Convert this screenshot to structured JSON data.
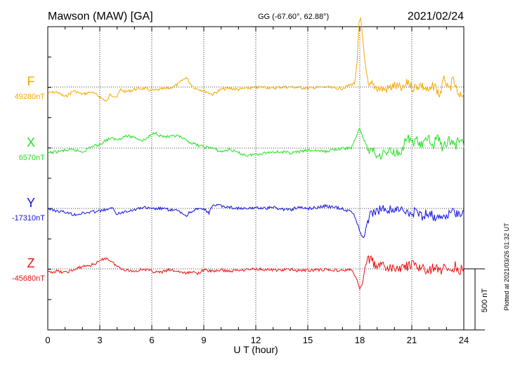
{
  "header": {
    "station": "Mawson (MAW)  [GA]",
    "coords": "GG (-67.60°,  62.88°)",
    "date": "2021/02/24"
  },
  "footer": {
    "plotted": "Plotted at 2021/03/26 01:32 UT",
    "scale_label": "500 nT"
  },
  "chart_data": {
    "type": "line",
    "xlabel": "U T (hour)",
    "xlim": [
      0,
      24
    ],
    "xticks": [
      "0",
      "3",
      "6",
      "9",
      "12",
      "15",
      "18",
      "21",
      "24"
    ],
    "scale_nT": 500,
    "series": [
      {
        "name": "F",
        "baseline_label": "49280nT",
        "baseline_nT": 49280,
        "color": "#f5a800",
        "points": [
          [
            0,
            -50
          ],
          [
            0.5,
            -40
          ],
          [
            1,
            -80
          ],
          [
            1.5,
            -30
          ],
          [
            2,
            -60
          ],
          [
            2.5,
            -40
          ],
          [
            3,
            -80
          ],
          [
            3.4,
            -120
          ],
          [
            3.6,
            -60
          ],
          [
            4,
            -80
          ],
          [
            4.2,
            -20
          ],
          [
            4.5,
            -40
          ],
          [
            5,
            -20
          ],
          [
            5.5,
            -10
          ],
          [
            6,
            -30
          ],
          [
            6.5,
            -20
          ],
          [
            7,
            -10
          ],
          [
            7.5,
            20
          ],
          [
            7.8,
            60
          ],
          [
            8,
            80
          ],
          [
            8.2,
            30
          ],
          [
            8.5,
            -10
          ],
          [
            9,
            -30
          ],
          [
            9.5,
            -60
          ],
          [
            10,
            -20
          ],
          [
            10.5,
            -10
          ],
          [
            11,
            -20
          ],
          [
            11.5,
            -10
          ],
          [
            12,
            -5
          ],
          [
            12.5,
            0
          ],
          [
            13,
            -10
          ],
          [
            13.5,
            0
          ],
          [
            14,
            0
          ],
          [
            14.5,
            -5
          ],
          [
            15,
            -10
          ],
          [
            15.5,
            -5
          ],
          [
            16,
            0
          ],
          [
            16.5,
            -10
          ],
          [
            17,
            -10
          ],
          [
            17.5,
            20
          ],
          [
            17.7,
            30
          ],
          [
            17.85,
            200
          ],
          [
            17.95,
            520
          ],
          [
            18.05,
            560
          ],
          [
            18.15,
            430
          ],
          [
            18.3,
            200
          ],
          [
            18.5,
            -10
          ],
          [
            18.7,
            20
          ],
          [
            19,
            -5
          ],
          [
            19.5,
            -20
          ],
          [
            20,
            10
          ],
          [
            20.5,
            -20
          ],
          [
            20.8,
            50
          ],
          [
            21,
            -10
          ],
          [
            21.5,
            20
          ],
          [
            22,
            -40
          ],
          [
            22.3,
            20
          ],
          [
            22.6,
            -70
          ],
          [
            22.9,
            80
          ],
          [
            23.1,
            -40
          ],
          [
            23.4,
            60
          ],
          [
            23.7,
            -90
          ],
          [
            24,
            -50
          ]
        ]
      },
      {
        "name": "X",
        "baseline_label": "6570nT",
        "baseline_nT": 6570,
        "color": "#22e022",
        "points": [
          [
            0,
            -40
          ],
          [
            0.5,
            -30
          ],
          [
            1,
            -20
          ],
          [
            1.5,
            -15
          ],
          [
            2,
            -30
          ],
          [
            2.5,
            10
          ],
          [
            3,
            30
          ],
          [
            3.3,
            60
          ],
          [
            3.6,
            80
          ],
          [
            4,
            70
          ],
          [
            4.5,
            100
          ],
          [
            5,
            90
          ],
          [
            5.5,
            60
          ],
          [
            6,
            110
          ],
          [
            6.2,
            130
          ],
          [
            6.5,
            100
          ],
          [
            7,
            90
          ],
          [
            7.5,
            100
          ],
          [
            8,
            60
          ],
          [
            8.5,
            30
          ],
          [
            9,
            10
          ],
          [
            9.5,
            0
          ],
          [
            10,
            -30
          ],
          [
            10.5,
            -10
          ],
          [
            11,
            -40
          ],
          [
            11.5,
            -60
          ],
          [
            12,
            -50
          ],
          [
            12.5,
            -40
          ],
          [
            13,
            -30
          ],
          [
            13.5,
            -30
          ],
          [
            14,
            -40
          ],
          [
            14.5,
            -30
          ],
          [
            15,
            -20
          ],
          [
            15.5,
            -20
          ],
          [
            16,
            -30
          ],
          [
            16.5,
            -10
          ],
          [
            17,
            -5
          ],
          [
            17.5,
            0
          ],
          [
            17.8,
            100
          ],
          [
            18,
            160
          ],
          [
            18.2,
            80
          ],
          [
            18.4,
            20
          ],
          [
            18.6,
            -30
          ],
          [
            18.8,
            -20
          ],
          [
            19,
            -60
          ],
          [
            19.4,
            -40
          ],
          [
            19.8,
            -20
          ],
          [
            20.2,
            -40
          ],
          [
            20.5,
            0
          ],
          [
            20.7,
            90
          ],
          [
            21,
            40
          ],
          [
            21.3,
            70
          ],
          [
            21.6,
            10
          ],
          [
            21.9,
            90
          ],
          [
            22.2,
            20
          ],
          [
            22.5,
            100
          ],
          [
            22.8,
            -10
          ],
          [
            23.1,
            80
          ],
          [
            23.5,
            10
          ],
          [
            23.8,
            100
          ],
          [
            24,
            0
          ]
        ]
      },
      {
        "name": "Y",
        "baseline_label": "-17310nT",
        "baseline_nT": -17310,
        "color": "#1010dd",
        "points": [
          [
            0,
            0
          ],
          [
            0.5,
            -20
          ],
          [
            1,
            -30
          ],
          [
            1.5,
            -50
          ],
          [
            2,
            -40
          ],
          [
            2.5,
            -30
          ],
          [
            3,
            -20
          ],
          [
            3.4,
            -10
          ],
          [
            3.8,
            0
          ],
          [
            4,
            -50
          ],
          [
            4.5,
            -20
          ],
          [
            5,
            -10
          ],
          [
            5.5,
            10
          ],
          [
            6,
            -5
          ],
          [
            6.5,
            0
          ],
          [
            7,
            -10
          ],
          [
            7.5,
            -20
          ],
          [
            8,
            -60
          ],
          [
            8.2,
            -30
          ],
          [
            8.5,
            -10
          ],
          [
            9,
            -5
          ],
          [
            9.3,
            -40
          ],
          [
            9.5,
            30
          ],
          [
            10,
            20
          ],
          [
            10.5,
            10
          ],
          [
            11,
            0
          ],
          [
            11.5,
            -5
          ],
          [
            12,
            10
          ],
          [
            12.5,
            0
          ],
          [
            13,
            10
          ],
          [
            13.5,
            -5
          ],
          [
            14,
            -10
          ],
          [
            14.5,
            10
          ],
          [
            15,
            0
          ],
          [
            15.5,
            10
          ],
          [
            16,
            20
          ],
          [
            16.5,
            10
          ],
          [
            17,
            0
          ],
          [
            17.3,
            -20
          ],
          [
            17.6,
            -30
          ],
          [
            17.8,
            -100
          ],
          [
            18,
            -180
          ],
          [
            18.2,
            -250
          ],
          [
            18.3,
            -210
          ],
          [
            18.45,
            -100
          ],
          [
            18.6,
            -50
          ],
          [
            18.8,
            -40
          ],
          [
            19,
            -20
          ],
          [
            19.5,
            0
          ],
          [
            20,
            -10
          ],
          [
            20.5,
            -20
          ],
          [
            21,
            -40
          ],
          [
            21.3,
            -20
          ],
          [
            21.6,
            -60
          ],
          [
            22,
            -30
          ],
          [
            22.3,
            -70
          ],
          [
            22.6,
            -40
          ],
          [
            22.9,
            -80
          ],
          [
            23.2,
            -30
          ],
          [
            23.6,
            -50
          ],
          [
            24,
            -20
          ]
        ]
      },
      {
        "name": "Z",
        "baseline_label": "-45680nT",
        "baseline_nT": -45680,
        "color": "#ee1111",
        "points": [
          [
            0,
            -30
          ],
          [
            0.5,
            -20
          ],
          [
            1,
            -30
          ],
          [
            1.5,
            -10
          ],
          [
            2,
            20
          ],
          [
            2.5,
            30
          ],
          [
            3,
            60
          ],
          [
            3.3,
            90
          ],
          [
            3.6,
            70
          ],
          [
            4,
            20
          ],
          [
            4.5,
            -10
          ],
          [
            5,
            -20
          ],
          [
            5.5,
            0
          ],
          [
            6,
            -20
          ],
          [
            6.5,
            -30
          ],
          [
            7,
            -10
          ],
          [
            7.5,
            -20
          ],
          [
            8,
            -40
          ],
          [
            8.3,
            -20
          ],
          [
            8.6,
            -40
          ],
          [
            9,
            -10
          ],
          [
            9.5,
            -20
          ],
          [
            10,
            -10
          ],
          [
            10.5,
            -20
          ],
          [
            11,
            -10
          ],
          [
            11.5,
            -5
          ],
          [
            12,
            0
          ],
          [
            12.5,
            -5
          ],
          [
            13,
            -10
          ],
          [
            13.5,
            -10
          ],
          [
            14,
            -5
          ],
          [
            14.5,
            -15
          ],
          [
            15,
            -10
          ],
          [
            15.5,
            -10
          ],
          [
            16,
            -5
          ],
          [
            16.5,
            -10
          ],
          [
            17,
            -15
          ],
          [
            17.5,
            -5
          ],
          [
            17.8,
            -80
          ],
          [
            18,
            -170
          ],
          [
            18.15,
            -120
          ],
          [
            18.3,
            10
          ],
          [
            18.5,
            90
          ],
          [
            18.7,
            60
          ],
          [
            19,
            30
          ],
          [
            19.5,
            10
          ],
          [
            20,
            0
          ],
          [
            20.5,
            10
          ],
          [
            21,
            30
          ],
          [
            21.5,
            10
          ],
          [
            22,
            -20
          ],
          [
            22.3,
            20
          ],
          [
            22.6,
            -30
          ],
          [
            22.9,
            40
          ],
          [
            23.2,
            -40
          ],
          [
            23.5,
            30
          ],
          [
            23.8,
            -20
          ],
          [
            24,
            10
          ]
        ]
      }
    ]
  }
}
